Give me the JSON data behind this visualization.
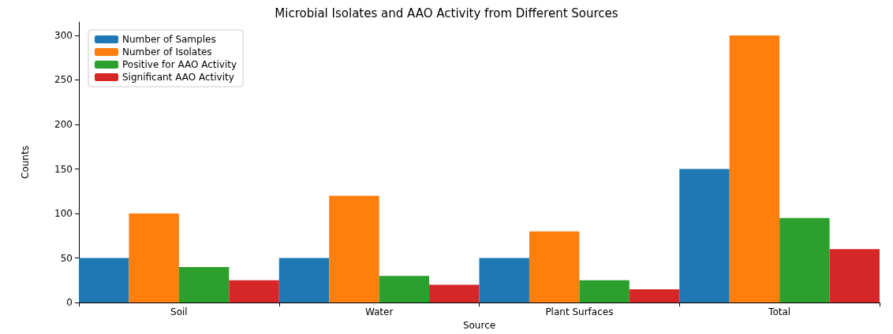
{
  "chart_data": {
    "type": "bar",
    "title": "Microbial Isolates and AAO Activity from Different Sources",
    "xlabel": "Source",
    "ylabel": "Counts",
    "categories": [
      "Soil",
      "Water",
      "Plant Surfaces",
      "Total"
    ],
    "series": [
      {
        "name": "Number of Samples",
        "color": "#1f77b4",
        "values": [
          50,
          50,
          50,
          150
        ]
      },
      {
        "name": "Number of Isolates",
        "color": "#ff7f0e",
        "values": [
          100,
          120,
          80,
          300
        ]
      },
      {
        "name": "Positive for AAO Activity",
        "color": "#2ca02c",
        "values": [
          40,
          30,
          25,
          95
        ]
      },
      {
        "name": "Significant AAO Activity",
        "color": "#d62728",
        "values": [
          25,
          20,
          15,
          60
        ]
      }
    ],
    "ylim": [
      0,
      315
    ],
    "yticks": [
      0,
      50,
      100,
      150,
      200,
      250,
      300
    ],
    "grid": false,
    "legend": "top left"
  }
}
